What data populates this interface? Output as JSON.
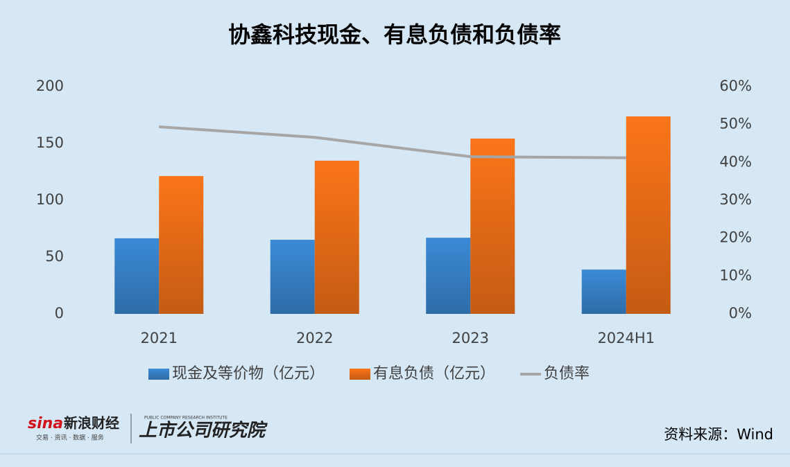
{
  "chart_data": {
    "type": "bar_line",
    "title": "协鑫科技现金、有息负债和负债率",
    "categories": [
      "2021",
      "2022",
      "2023",
      "2024H1"
    ],
    "series": [
      {
        "name": "现金及等价物（亿元）",
        "color": "#3b8ad6",
        "values": [
          66.5,
          65.2,
          67,
          39
        ]
      },
      {
        "name": "有息负债（亿元）",
        "color": "#fb7519",
        "values": [
          121.3,
          134.8,
          154.3,
          173.8
        ]
      },
      {
        "name": "负债率",
        "color": "#a6a6a6",
        "axis": "y2",
        "type": "line",
        "values": [
          49.4,
          46.6,
          41.5,
          41.2
        ]
      }
    ],
    "ylim": [
      0,
      200
    ],
    "yticks": [
      0,
      50,
      100,
      150,
      200
    ],
    "y2lim": [
      0,
      60
    ],
    "y2ticks": [
      {
        "value": 0,
        "label": "0%"
      },
      {
        "value": 10,
        "label": "10%"
      },
      {
        "value": 20,
        "label": "20%"
      },
      {
        "value": 30,
        "label": "30%"
      },
      {
        "value": 40,
        "label": "40%"
      },
      {
        "value": 50,
        "label": "50%"
      },
      {
        "value": 60,
        "label": "60%"
      }
    ],
    "legend": "bottom"
  },
  "source": "资料来源：Wind",
  "branding": {
    "sina": "新浪财经",
    "sina_tagline": "交易 · 资讯 · 数据 · 服务",
    "institute": "上市公司研究院",
    "institute_en": "PUBLIC COMPANY RESEARCH INSTITUTE"
  }
}
